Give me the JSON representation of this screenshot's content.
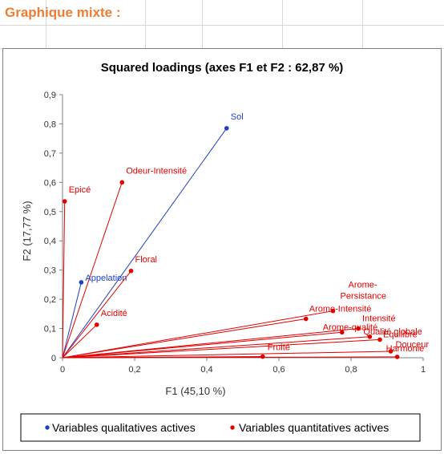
{
  "sheet": {
    "title": "Graphique mixte :"
  },
  "chart_data": {
    "type": "scatter",
    "title": "Squared loadings (axes F1 et F2 : 62,87 %)",
    "xlabel": "F1 (45,10 %)",
    "ylabel": "F2 (17,77 %)",
    "xlim": [
      0,
      1
    ],
    "ylim": [
      0,
      0.9
    ],
    "xticks": [
      "0",
      "0,2",
      "0,4",
      "0,6",
      "0,8",
      "1"
    ],
    "yticks": [
      "0",
      "0,1",
      "0,2",
      "0,3",
      "0,4",
      "0,5",
      "0,6",
      "0,7",
      "0,8",
      "0,9"
    ],
    "grid": false,
    "legend_position": "bottom",
    "series": [
      {
        "name": "Variables qualitatives actives",
        "color": "#1f3fc4",
        "points": [
          {
            "label": "Sol",
            "x": 0.455,
            "y": 0.785
          },
          {
            "label": "Appelation",
            "x": 0.052,
            "y": 0.258
          }
        ]
      },
      {
        "name": "Variables quantitatives actives",
        "color": "#e00000",
        "points": [
          {
            "label": "Epicé",
            "x": 0.006,
            "y": 0.535
          },
          {
            "label": "Odeur-Intensité",
            "x": 0.165,
            "y": 0.6
          },
          {
            "label": "Floral",
            "x": 0.19,
            "y": 0.297
          },
          {
            "label": "Acidité",
            "x": 0.095,
            "y": 0.113
          },
          {
            "label": "Arome-Intensité",
            "x": 0.675,
            "y": 0.133
          },
          {
            "label": "Arome-Persistance",
            "x": 0.75,
            "y": 0.16
          },
          {
            "label": "Intensité",
            "x": 0.82,
            "y": 0.1
          },
          {
            "label": "Arome-qualité",
            "x": 0.775,
            "y": 0.087
          },
          {
            "label": "Qualité globale",
            "x": 0.852,
            "y": 0.072
          },
          {
            "label": "Equilibre",
            "x": 0.88,
            "y": 0.062
          },
          {
            "label": "Douceur",
            "x": 0.91,
            "y": 0.022
          },
          {
            "label": "Harmonie",
            "x": 0.928,
            "y": 0.003
          },
          {
            "label": "Fruité",
            "x": 0.555,
            "y": 0.004
          }
        ]
      }
    ]
  }
}
